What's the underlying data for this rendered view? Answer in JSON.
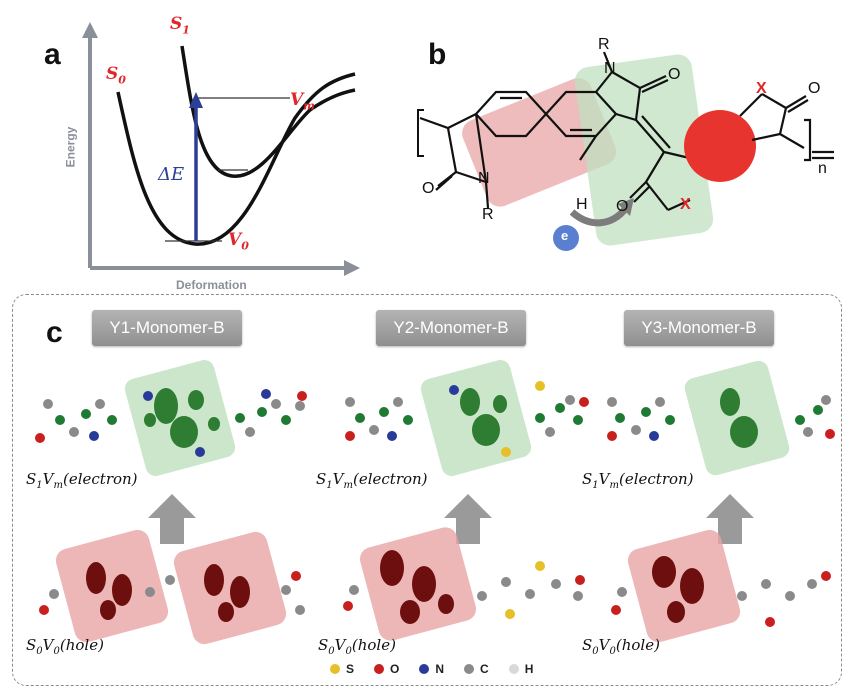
{
  "panel_a": {
    "letter": "a",
    "y_axis_label": "Energy",
    "x_axis_label": "Deformation",
    "s0_label": "S",
    "s0_sub": "0",
    "s1_label": "S",
    "s1_sub": "1",
    "vm_label": "V",
    "vm_sub": "m",
    "v0_label": "V",
    "v0_sub": "0",
    "delta_e_label": "ΔE",
    "accent_red": "#e0262b",
    "arrow_blue": "#2b3f98"
  },
  "panel_b": {
    "letter": "b",
    "atom_r_top": "R",
    "atom_n_top": "N",
    "atom_o_top": "O",
    "atom_x_right": "X",
    "atom_o_right": "O",
    "atom_o_left": "O",
    "atom_n_bottom": "N",
    "atom_r_bottom": "R",
    "atom_h": "H",
    "atom_o_bottom": "O",
    "atom_x_bottom": "X",
    "repeat_n": "n",
    "electron_label": "e",
    "red_highlight": "#e8a5a5",
    "green_highlight": "#bfe0bf",
    "red_circle": "#e8342e"
  },
  "panel_c": {
    "letter": "c",
    "tags": [
      "Y1-Monomer-B",
      "Y2-Monomer-B",
      "Y3-Monomer-B"
    ],
    "electron_state": "S",
    "electron_state_sub1": "1",
    "electron_state_v": "V",
    "electron_state_sub2": "m",
    "electron_state_suffix": "(electron)",
    "hole_state": "S",
    "hole_state_sub1": "0",
    "hole_state_v": "V",
    "hole_state_sub2": "0",
    "hole_state_suffix": "(hole)",
    "legend": [
      {
        "symbol": "S",
        "color": "#e6c027"
      },
      {
        "symbol": "O",
        "color": "#c8201f"
      },
      {
        "symbol": "N",
        "color": "#2a3a9a"
      },
      {
        "symbol": "C",
        "color": "#8a8a8a"
      },
      {
        "symbol": "H",
        "color": "#d9d9d9"
      }
    ]
  }
}
